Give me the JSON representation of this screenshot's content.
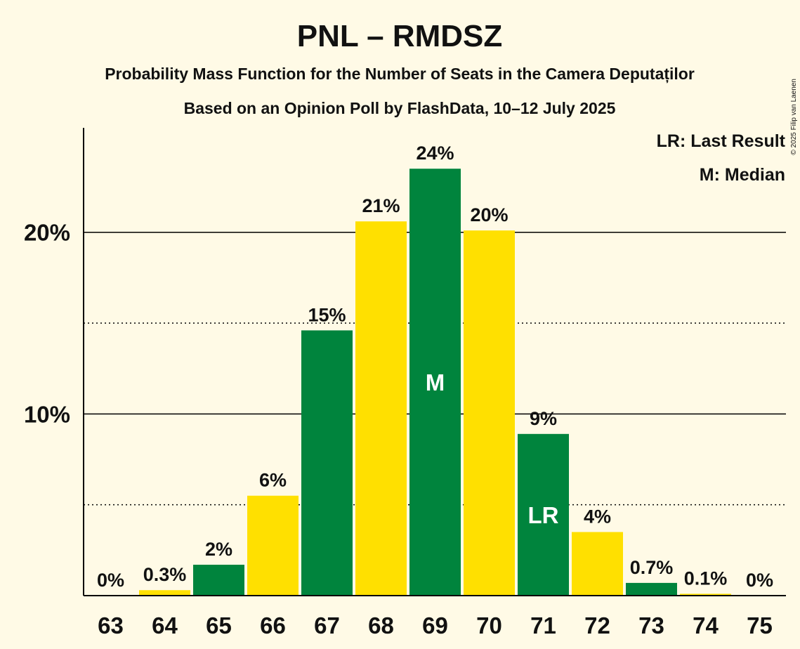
{
  "chart_data": {
    "type": "bar",
    "title": "PNL – RMDSZ",
    "subtitle_1": "Probability Mass Function for the Number of Seats in the Camera Deputaților",
    "subtitle_2": "Based on an Opinion Poll by FlashData, 10–12 July 2025",
    "categories": [
      "63",
      "64",
      "65",
      "66",
      "67",
      "68",
      "69",
      "70",
      "71",
      "72",
      "73",
      "74",
      "75"
    ],
    "values": [
      0,
      0.3,
      1.7,
      5.5,
      14.6,
      20.6,
      23.5,
      20.1,
      8.9,
      3.5,
      0.7,
      0.1,
      0
    ],
    "value_labels": [
      "0%",
      "0.3%",
      "2%",
      "6%",
      "15%",
      "21%",
      "24%",
      "20%",
      "9%",
      "4%",
      "0.7%",
      "0.1%",
      "0%"
    ],
    "bar_colors": [
      "#00843d",
      "#ffe000",
      "#00843d",
      "#ffe000",
      "#00843d",
      "#ffe000",
      "#00843d",
      "#ffe000",
      "#00843d",
      "#ffe000",
      "#00843d",
      "#ffe000",
      "#00843d"
    ],
    "ylim": [
      0,
      25
    ],
    "yticks": [
      10,
      20
    ],
    "ytick_labels": [
      "10%",
      "20%"
    ],
    "minor_gridlines": [
      5,
      15
    ],
    "grid": true,
    "annotations": [
      {
        "category": "69",
        "text": "M"
      },
      {
        "category": "71",
        "text": "LR"
      }
    ],
    "legend_position": "top-right",
    "legend": [
      "LR: Last Result",
      "M: Median"
    ],
    "xlabel": "",
    "ylabel": ""
  },
  "copyright": "© 2025 Filip van Laenen",
  "colors": {
    "background": "#fffae6",
    "green": "#00843d",
    "yellow": "#ffe000"
  }
}
